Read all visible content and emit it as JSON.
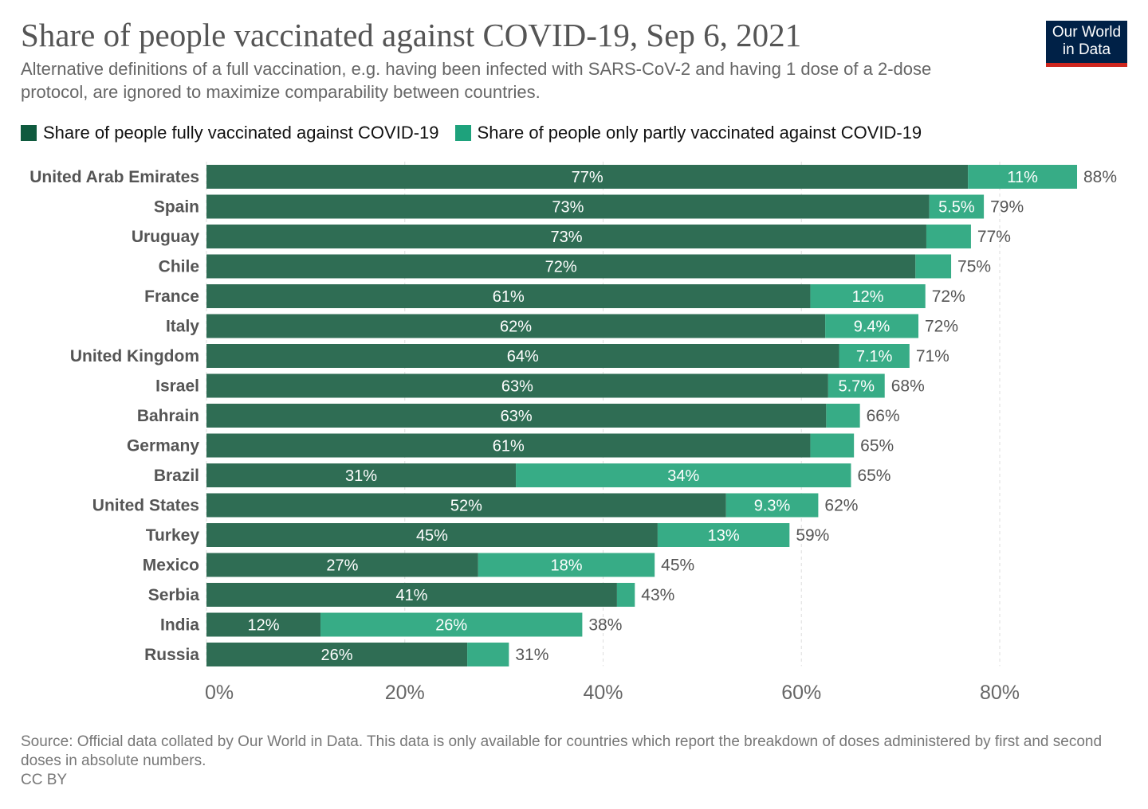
{
  "header": {
    "title": "Share of people vaccinated against COVID-19, Sep 6, 2021",
    "subtitle": "Alternative definitions of a full vaccination, e.g. having been infected with SARS-CoV-2 and having 1 dose of a 2-dose protocol, are ignored to maximize comparability between countries.",
    "logo": "Our World in Data"
  },
  "footer": {
    "source": "Source: Official data collated by Our World in Data. This data is only available for countries which report the breakdown of doses administered by first and second doses in absolute numbers.",
    "license": "CC BY"
  },
  "chart_data": {
    "type": "bar",
    "orientation": "horizontal",
    "stacked": true,
    "title": "Share of people vaccinated against COVID-19, Sep 6, 2021",
    "xlim": [
      0,
      88
    ],
    "xticks": [
      "0%",
      "20%",
      "40%",
      "60%",
      "80%"
    ],
    "xtick_values": [
      0,
      20,
      40,
      60,
      80
    ],
    "grid": "vertical dashed",
    "legend_position": "top-left",
    "colors": {
      "full": "#2b6a51",
      "partly": "#33aa84",
      "legend_full": "#0f5a3e",
      "legend_partly": "#1ea27c"
    },
    "series": [
      {
        "name": "Share of people fully vaccinated against COVID-19",
        "key": "full"
      },
      {
        "name": "Share of people only partly vaccinated against COVID-19",
        "key": "partly"
      }
    ],
    "rows": [
      {
        "country": "United Arab Emirates",
        "full": 76.8,
        "partly": 11.0,
        "full_label": "77%",
        "partly_label": "11%",
        "total_label": "88%"
      },
      {
        "country": "Spain",
        "full": 72.9,
        "partly": 5.5,
        "full_label": "73%",
        "partly_label": "5.5%",
        "total_label": "79%"
      },
      {
        "country": "Uruguay",
        "full": 72.6,
        "partly": 4.5,
        "full_label": "73%",
        "partly_label": "",
        "total_label": "77%"
      },
      {
        "country": "Chile",
        "full": 71.5,
        "partly": 3.6,
        "full_label": "72%",
        "partly_label": "",
        "total_label": "75%"
      },
      {
        "country": "France",
        "full": 60.9,
        "partly": 11.6,
        "full_label": "61%",
        "partly_label": "12%",
        "total_label": "72%"
      },
      {
        "country": "Italy",
        "full": 62.4,
        "partly": 9.4,
        "full_label": "62%",
        "partly_label": "9.4%",
        "total_label": "72%"
      },
      {
        "country": "United Kingdom",
        "full": 63.8,
        "partly": 7.1,
        "full_label": "64%",
        "partly_label": "7.1%",
        "total_label": "71%"
      },
      {
        "country": "Israel",
        "full": 62.7,
        "partly": 5.7,
        "full_label": "63%",
        "partly_label": "5.7%",
        "total_label": "68%"
      },
      {
        "country": "Bahrain",
        "full": 62.5,
        "partly": 3.4,
        "full_label": "63%",
        "partly_label": "",
        "total_label": "66%"
      },
      {
        "country": "Germany",
        "full": 60.9,
        "partly": 4.4,
        "full_label": "61%",
        "partly_label": "",
        "total_label": "65%"
      },
      {
        "country": "Brazil",
        "full": 31.2,
        "partly": 33.8,
        "full_label": "31%",
        "partly_label": "34%",
        "total_label": "65%"
      },
      {
        "country": "United States",
        "full": 52.4,
        "partly": 9.3,
        "full_label": "52%",
        "partly_label": "9.3%",
        "total_label": "62%"
      },
      {
        "country": "Turkey",
        "full": 45.5,
        "partly": 13.3,
        "full_label": "45%",
        "partly_label": "13%",
        "total_label": "59%"
      },
      {
        "country": "Mexico",
        "full": 27.4,
        "partly": 17.8,
        "full_label": "27%",
        "partly_label": "18%",
        "total_label": "45%"
      },
      {
        "country": "Serbia",
        "full": 41.4,
        "partly": 1.8,
        "full_label": "41%",
        "partly_label": "",
        "total_label": "43%"
      },
      {
        "country": "India",
        "full": 11.5,
        "partly": 26.4,
        "full_label": "12%",
        "partly_label": "26%",
        "total_label": "38%"
      },
      {
        "country": "Russia",
        "full": 26.3,
        "partly": 4.2,
        "full_label": "26%",
        "partly_label": "",
        "total_label": "31%"
      }
    ]
  }
}
